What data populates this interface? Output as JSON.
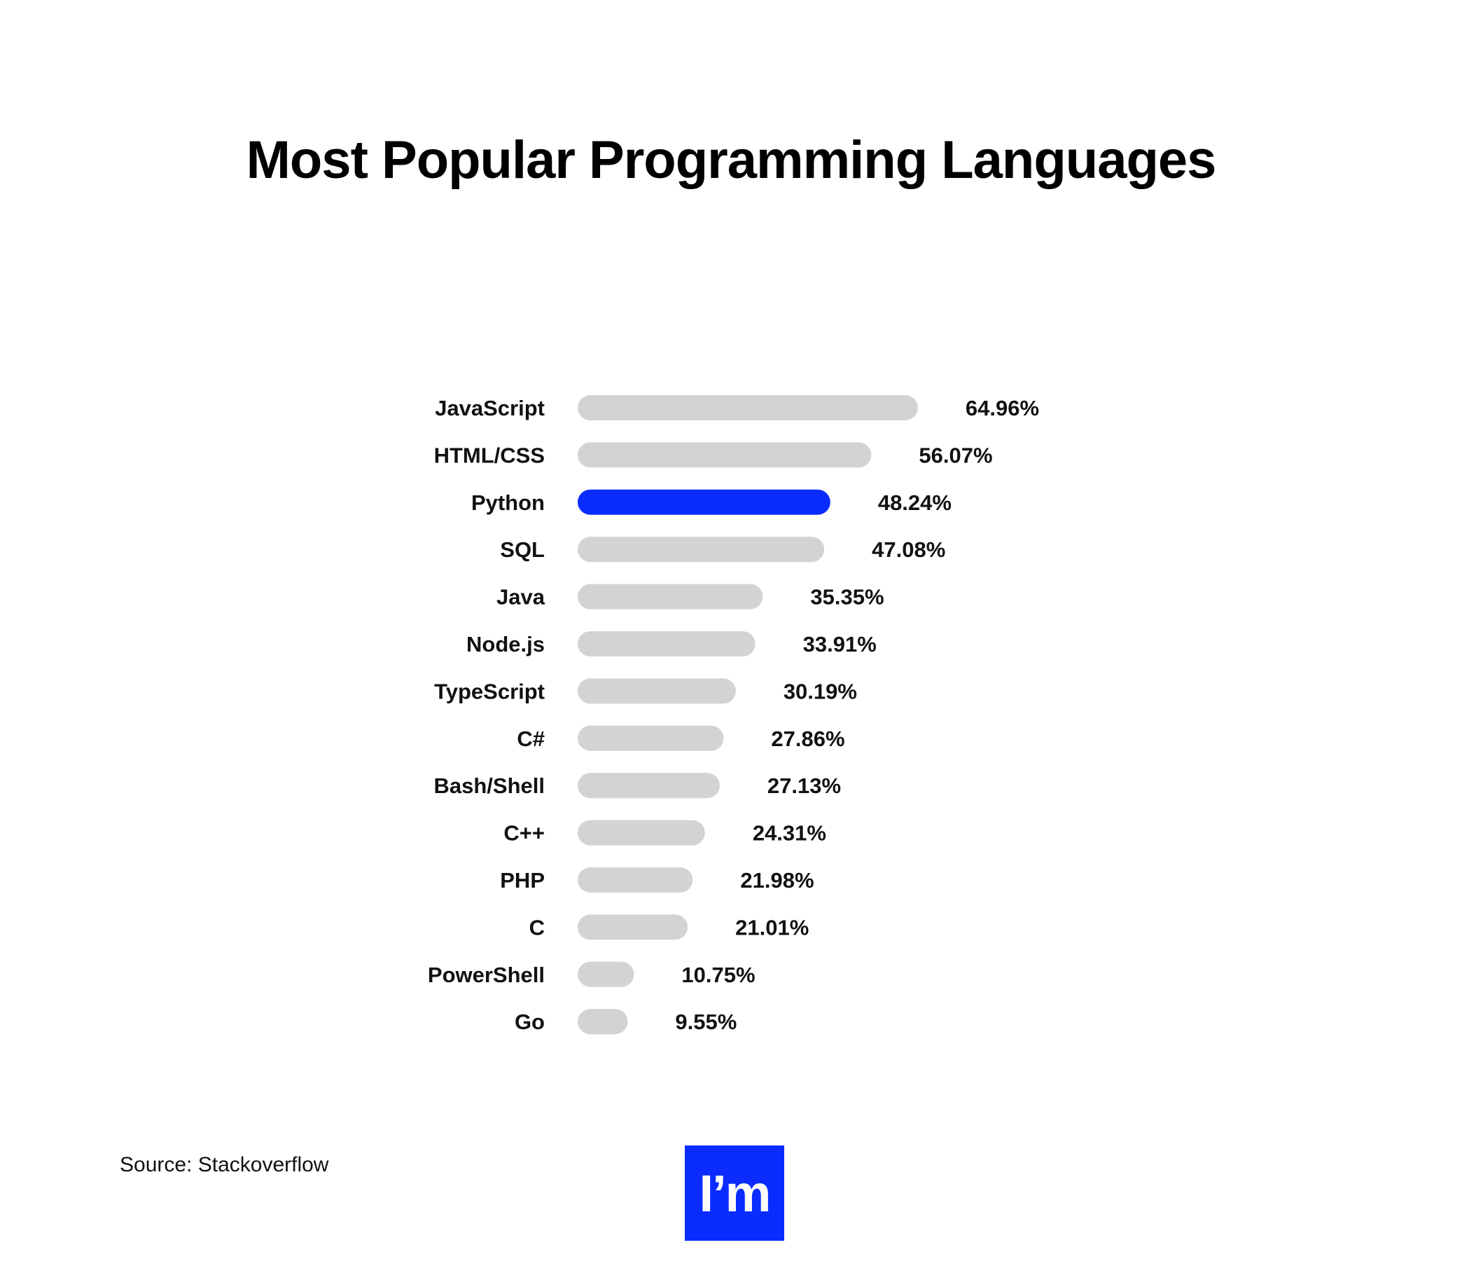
{
  "title": "Most Popular Programming Languages",
  "source": "Source: Stackoverflow",
  "logo_text": "I’m",
  "colors": {
    "highlight": "#0a2cff",
    "bar": "#d3d3d3",
    "text": "#111111",
    "logo_bg": "#0a2cff"
  },
  "chart_data": {
    "type": "bar",
    "orientation": "horizontal",
    "title": "Most Popular Programming Languages",
    "categories": [
      "JavaScript",
      "HTML/CSS",
      "Python",
      "SQL",
      "Java",
      "Node.js",
      "TypeScript",
      "C#",
      "Bash/Shell",
      "C++",
      "PHP",
      "C",
      "PowerShell",
      "Go"
    ],
    "values": [
      64.96,
      56.07,
      48.24,
      47.08,
      35.35,
      33.91,
      30.19,
      27.86,
      27.13,
      24.31,
      21.98,
      21.01,
      10.75,
      9.55
    ],
    "value_labels": [
      "64.96%",
      "56.07%",
      "48.24%",
      "47.08%",
      "35.35%",
      "33.91%",
      "30.19%",
      "27.86%",
      "27.13%",
      "24.31%",
      "21.98%",
      "21.01%",
      "10.75%",
      "9.55%"
    ],
    "highlight": "Python",
    "unit": "%",
    "grid": false,
    "legend": "none"
  }
}
